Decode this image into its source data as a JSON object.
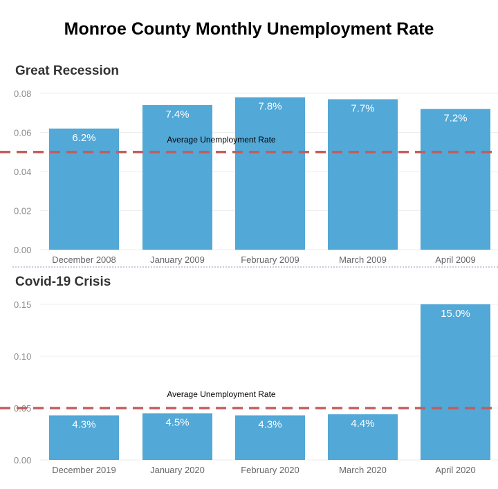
{
  "title": "Monroe County Monthly Unemployment Rate",
  "colors": {
    "bar": "#52a8d6",
    "reference_line": "#c45c5c",
    "grid": "#eeeeee",
    "divider": "#b8b8d0"
  },
  "chart_data": [
    {
      "type": "bar",
      "title": "Great Recession",
      "categories": [
        "December 2008",
        "January 2009",
        "February 2009",
        "March 2009",
        "April 2009"
      ],
      "values": [
        0.062,
        0.074,
        0.078,
        0.077,
        0.072
      ],
      "data_labels": [
        "6.2%",
        "7.4%",
        "7.8%",
        "7.7%",
        "7.2%"
      ],
      "yticks": [
        0,
        0.02,
        0.04,
        0.06,
        0.08
      ],
      "ytick_labels": [
        "0.00",
        "0.02",
        "0.04",
        "0.06",
        "0.08"
      ],
      "ylim": [
        0,
        0.08
      ],
      "reference_line": {
        "value": 0.05,
        "label": "Average Unemployment  Rate"
      },
      "xlabel": "",
      "ylabel": ""
    },
    {
      "type": "bar",
      "title": "Covid-19 Crisis",
      "categories": [
        "December 2019",
        "January 2020",
        "February 2020",
        "March 2020",
        "April 2020"
      ],
      "values": [
        0.043,
        0.045,
        0.043,
        0.044,
        0.15
      ],
      "data_labels": [
        "4.3%",
        "4.5%",
        "4.3%",
        "4.4%",
        "15.0%"
      ],
      "yticks": [
        0,
        0.05,
        0.1,
        0.15
      ],
      "ytick_labels": [
        "0.00",
        "0.05",
        "0.10",
        "0.15"
      ],
      "ylim": [
        0,
        0.15
      ],
      "reference_line": {
        "value": 0.05,
        "label": "Average Unemployment  Rate"
      },
      "xlabel": "",
      "ylabel": ""
    }
  ]
}
